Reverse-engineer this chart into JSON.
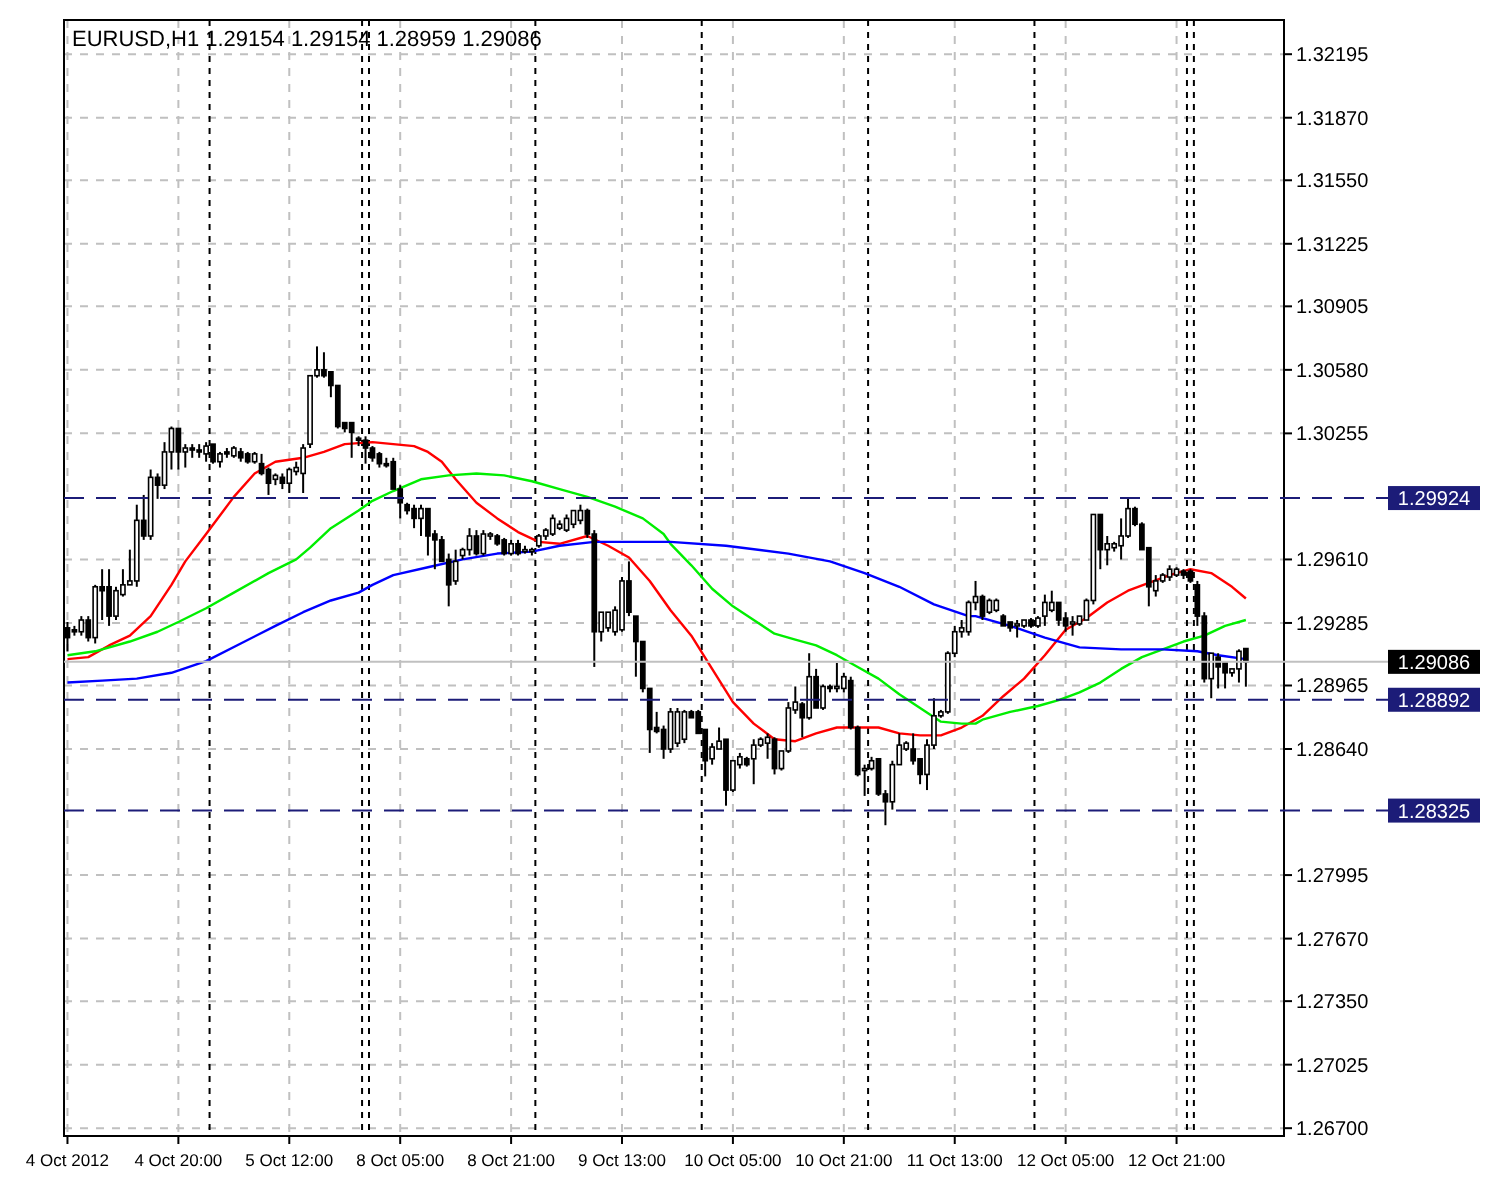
{
  "chart_data": {
    "type": "candlestick",
    "title": "EURUSD,H1  1.29154 1.29154 1.28959 1.29086",
    "categories": [
      "4 Oct 2012",
      null,
      null,
      null,
      null,
      null,
      null,
      null,
      null,
      null,
      null,
      null,
      null,
      null,
      null,
      null,
      "4 Oct 20:00",
      null,
      null,
      null,
      null,
      null,
      null,
      null,
      null,
      null,
      null,
      null,
      null,
      null,
      null,
      null,
      "5 Oct 12:00",
      null,
      null,
      null,
      null,
      null,
      null,
      null,
      null,
      null,
      null,
      null,
      null,
      null,
      null,
      null,
      "8 Oct 05:00",
      null,
      null,
      null,
      null,
      null,
      null,
      null,
      null,
      null,
      null,
      null,
      null,
      null,
      null,
      null,
      "8 Oct 21:00",
      null,
      null,
      null,
      null,
      null,
      null,
      null,
      null,
      null,
      null,
      null,
      null,
      null,
      null,
      null,
      "9 Oct 13:00",
      null,
      null,
      null,
      null,
      null,
      null,
      null,
      null,
      null,
      null,
      null,
      null,
      null,
      null,
      null,
      "10 Oct 05:00",
      null,
      null,
      null,
      null,
      null,
      null,
      null,
      null,
      null,
      null,
      null,
      null,
      null,
      null,
      null,
      "10 Oct 21:00",
      null,
      null,
      null,
      null,
      null,
      null,
      null,
      null,
      null,
      null,
      null,
      null,
      null,
      null,
      null,
      "11 Oct 13:00",
      null,
      null,
      null,
      null,
      null,
      null,
      null,
      null,
      null,
      null,
      null,
      null,
      null,
      null,
      null,
      "12 Oct 05:00",
      null,
      null,
      null,
      null,
      null,
      null,
      null,
      null,
      null,
      null,
      null,
      null,
      null,
      null,
      null,
      "12 Oct 21:00",
      null,
      null,
      null,
      null,
      null,
      null,
      null,
      null,
      null,
      null,
      null,
      null,
      null,
      null,
      null
    ],
    "ohlc": [
      [
        1.2926,
        1.2929,
        1.2914,
        1.2921
      ],
      [
        1.2925,
        1.2927,
        1.2922,
        1.2924
      ],
      [
        1.2924,
        1.2932,
        1.2922,
        1.293
      ],
      [
        1.293,
        1.2932,
        1.2919,
        1.2921
      ],
      [
        1.2921,
        1.2948,
        1.2918,
        1.2947
      ],
      [
        1.2947,
        1.2956,
        1.293,
        1.2945
      ],
      [
        1.2947,
        1.2956,
        1.2927,
        1.2932
      ],
      [
        1.2932,
        1.2947,
        1.293,
        1.2945
      ],
      [
        1.2943,
        1.2956,
        1.2942,
        1.2948
      ],
      [
        1.2948,
        1.2966,
        1.2948,
        1.295
      ],
      [
        1.295,
        1.2989,
        1.2947,
        1.2981
      ],
      [
        1.2981,
        1.2994,
        1.2971,
        1.2973
      ],
      [
        1.2973,
        1.3007,
        1.2971,
        1.3003
      ],
      [
        1.3003,
        1.3005,
        1.2992,
        1.2999
      ],
      [
        1.2999,
        1.3021,
        1.2997,
        1.3016
      ],
      [
        1.3016,
        1.3029,
        1.3007,
        1.3028
      ],
      [
        1.3028,
        1.3028,
        1.3007,
        1.3016
      ],
      [
        1.3016,
        1.302,
        1.3008,
        1.3018
      ],
      [
        1.3018,
        1.302,
        1.3013,
        1.3017
      ],
      [
        1.3017,
        1.302,
        1.3013,
        1.3016
      ],
      [
        1.3015,
        1.3021,
        1.3011,
        1.3019
      ],
      [
        1.302,
        1.302,
        1.301,
        1.3011
      ],
      [
        1.3011,
        1.3016,
        1.3008,
        1.3015
      ],
      [
        1.3016,
        1.3018,
        1.3013,
        1.3015
      ],
      [
        1.3014,
        1.3019,
        1.3013,
        1.3018
      ],
      [
        1.3016,
        1.3018,
        1.3011,
        1.3013
      ],
      [
        1.3015,
        1.3016,
        1.301,
        1.3011
      ],
      [
        1.3011,
        1.3016,
        1.301,
        1.3015
      ],
      [
        1.301,
        1.3015,
        1.3004,
        1.3005
      ],
      [
        1.3007,
        1.3008,
        1.2994,
        1.3
      ],
      [
        1.3002,
        1.3005,
        1.2999,
        1.3004
      ],
      [
        1.3003,
        1.3005,
        1.2997,
        1.3
      ],
      [
        1.3,
        1.3008,
        1.2995,
        1.3007
      ],
      [
        1.3006,
        1.3011,
        1.3004,
        1.3008
      ],
      [
        1.3005,
        1.302,
        1.2995,
        1.3018
      ],
      [
        1.302,
        1.3055,
        1.3018,
        1.3055
      ],
      [
        1.3055,
        1.307,
        1.3054,
        1.3058
      ],
      [
        1.3058,
        1.3067,
        1.3054,
        1.3055
      ],
      [
        1.3057,
        1.3057,
        1.3044,
        1.305
      ],
      [
        1.305,
        1.305,
        1.3028,
        1.3029
      ],
      [
        1.3031,
        1.3031,
        1.3026,
        1.3028
      ],
      [
        1.3031,
        1.3031,
        1.3013,
        1.3026
      ],
      [
        1.3023,
        1.3024,
        1.3019,
        1.3022
      ],
      [
        1.3022,
        1.3024,
        1.301,
        1.3018
      ],
      [
        1.3018,
        1.3019,
        1.3011,
        1.3013
      ],
      [
        1.3015,
        1.3016,
        1.3008,
        1.301
      ],
      [
        1.301,
        1.3013,
        1.3008,
        1.3009
      ],
      [
        1.3011,
        1.3013,
        1.2997,
        1.2997
      ],
      [
        1.2997,
        1.2999,
        1.2982,
        1.299
      ],
      [
        1.2989,
        1.299,
        1.2984,
        1.2986
      ],
      [
        1.2987,
        1.2989,
        1.2977,
        1.2982
      ],
      [
        1.2982,
        1.2989,
        1.2973,
        1.2987
      ],
      [
        1.2987,
        1.2987,
        1.2963,
        1.2973
      ],
      [
        1.2974,
        1.2976,
        1.2956,
        1.2971
      ],
      [
        1.2971,
        1.2973,
        1.296,
        1.296
      ],
      [
        1.2961,
        1.2964,
        1.2937,
        1.2948
      ],
      [
        1.295,
        1.2966,
        1.2948,
        1.296
      ],
      [
        1.2963,
        1.2967,
        1.2961,
        1.2966
      ],
      [
        1.2966,
        1.2977,
        1.2963,
        1.2973
      ],
      [
        1.2973,
        1.2976,
        1.2963,
        1.2964
      ],
      [
        1.2964,
        1.2976,
        1.2963,
        1.2974
      ],
      [
        1.2973,
        1.2975,
        1.2971,
        1.2974
      ],
      [
        1.2973,
        1.2974,
        1.2968,
        1.2969
      ],
      [
        1.2971,
        1.2972,
        1.2963,
        1.2964
      ],
      [
        1.2964,
        1.2971,
        1.2963,
        1.2969
      ],
      [
        1.2969,
        1.2971,
        1.2963,
        1.2964
      ],
      [
        1.2966,
        1.2968,
        1.2964,
        1.2966
      ],
      [
        1.2966,
        1.2967,
        1.2963,
        1.2966
      ],
      [
        1.2968,
        1.2974,
        1.2967,
        1.2973
      ],
      [
        1.2973,
        1.2977,
        1.2971,
        1.2976
      ],
      [
        1.2974,
        1.2984,
        1.2973,
        1.2982
      ],
      [
        1.2977,
        1.2981,
        1.2976,
        1.2979
      ],
      [
        1.2976,
        1.2984,
        1.2975,
        1.2982
      ],
      [
        1.2979,
        1.2986,
        1.2977,
        1.2986
      ],
      [
        1.2981,
        1.2989,
        1.2979,
        1.2986
      ],
      [
        1.2986,
        1.2987,
        1.2972,
        1.2974
      ],
      [
        1.2974,
        1.2976,
        1.2906,
        1.2924
      ],
      [
        1.2924,
        1.2934,
        1.2919,
        1.2934
      ],
      [
        1.2926,
        1.2934,
        1.2924,
        1.2934
      ],
      [
        1.2924,
        1.2937,
        1.2922,
        1.2935
      ],
      [
        1.2925,
        1.2952,
        1.2924,
        1.295
      ],
      [
        1.295,
        1.296,
        1.2932,
        1.2934
      ],
      [
        1.2932,
        1.2932,
        1.2901,
        1.2919
      ],
      [
        1.2919,
        1.2919,
        1.2893,
        1.2895
      ],
      [
        1.2895,
        1.2895,
        1.2862,
        1.2874
      ],
      [
        1.2875,
        1.2883,
        1.2872,
        1.2873
      ],
      [
        1.2874,
        1.2876,
        1.2859,
        1.2864
      ],
      [
        1.2864,
        1.2885,
        1.2862,
        1.2883
      ],
      [
        1.2867,
        1.2885,
        1.2865,
        1.2883
      ],
      [
        1.2869,
        1.2884,
        1.2867,
        1.2883
      ],
      [
        1.2883,
        1.2884,
        1.288,
        1.288
      ],
      [
        1.2883,
        1.2884,
        1.2872,
        1.2872
      ],
      [
        1.2874,
        1.2874,
        1.285,
        1.2858
      ],
      [
        1.2859,
        1.2867,
        1.2856,
        1.2865
      ],
      [
        1.2864,
        1.2875,
        1.2864,
        1.2868
      ],
      [
        1.2869,
        1.2869,
        1.2835,
        1.2843
      ],
      [
        1.2843,
        1.2858,
        1.2842,
        1.2858
      ],
      [
        1.2856,
        1.2862,
        1.2854,
        1.286
      ],
      [
        1.2859,
        1.286,
        1.2855,
        1.2856
      ],
      [
        1.2859,
        1.2869,
        1.2846,
        1.2866
      ],
      [
        1.2866,
        1.287,
        1.2865,
        1.2869
      ],
      [
        1.2867,
        1.2872,
        1.2859,
        1.287
      ],
      [
        1.2869,
        1.287,
        1.2851,
        1.2854
      ],
      [
        1.2854,
        1.2863,
        1.2853,
        1.2863
      ],
      [
        1.2863,
        1.2888,
        1.2862,
        1.2885
      ],
      [
        1.2884,
        1.2896,
        1.2882,
        1.2888
      ],
      [
        1.2887,
        1.2888,
        1.287,
        1.288
      ],
      [
        1.288,
        1.2913,
        1.2879,
        1.2901
      ],
      [
        1.2901,
        1.2905,
        1.2885,
        1.2885
      ],
      [
        1.2885,
        1.2897,
        1.2884,
        1.2896
      ],
      [
        1.2896,
        1.2897,
        1.2893,
        1.2895
      ],
      [
        1.2895,
        1.2908,
        1.2893,
        1.2896
      ],
      [
        1.2895,
        1.2903,
        1.2893,
        1.2901
      ],
      [
        1.2899,
        1.2901,
        1.2874,
        1.2875
      ],
      [
        1.2875,
        1.2876,
        1.285,
        1.2851
      ],
      [
        1.2853,
        1.2856,
        1.284,
        1.2854
      ],
      [
        1.2854,
        1.286,
        1.2853,
        1.2858
      ],
      [
        1.2859,
        1.2859,
        1.284,
        1.2841
      ],
      [
        1.2841,
        1.2843,
        1.2825,
        1.2837
      ],
      [
        1.2837,
        1.2858,
        1.2833,
        1.2856
      ],
      [
        1.2856,
        1.2872,
        1.2856,
        1.2866
      ],
      [
        1.2864,
        1.2868,
        1.2863,
        1.2867
      ],
      [
        1.2864,
        1.2872,
        1.2856,
        1.2858
      ],
      [
        1.2859,
        1.2859,
        1.2846,
        1.2851
      ],
      [
        1.2851,
        1.2869,
        1.2843,
        1.2866
      ],
      [
        1.2866,
        1.289,
        1.2864,
        1.2881
      ],
      [
        1.2881,
        1.2884,
        1.288,
        1.2883
      ],
      [
        1.2883,
        1.2914,
        1.2882,
        1.2913
      ],
      [
        1.2913,
        1.2927,
        1.2911,
        1.2924
      ],
      [
        1.2924,
        1.293,
        1.2921,
        1.2926
      ],
      [
        1.2924,
        1.294,
        1.2922,
        1.2939
      ],
      [
        1.2939,
        1.295,
        1.2935,
        1.2942
      ],
      [
        1.2942,
        1.2943,
        1.293,
        1.2932
      ],
      [
        1.2934,
        1.2941,
        1.2933,
        1.294
      ],
      [
        1.2935,
        1.2941,
        1.2934,
        1.294
      ],
      [
        1.2932,
        1.2933,
        1.2927,
        1.2927
      ],
      [
        1.2929,
        1.2929,
        1.2924,
        1.2926
      ],
      [
        1.2927,
        1.293,
        1.2921,
        1.2928
      ],
      [
        1.2927,
        1.293,
        1.2926,
        1.293
      ],
      [
        1.293,
        1.2931,
        1.2926,
        1.2927
      ],
      [
        1.2927,
        1.2932,
        1.2926,
        1.2931
      ],
      [
        1.2932,
        1.2943,
        1.2927,
        1.2939
      ],
      [
        1.2935,
        1.2945,
        1.2934,
        1.2939
      ],
      [
        1.2939,
        1.2939,
        1.2927,
        1.293
      ],
      [
        1.2931,
        1.2934,
        1.2924,
        1.2927
      ],
      [
        1.2929,
        1.2932,
        1.2922,
        1.2929
      ],
      [
        1.2928,
        1.2932,
        1.2927,
        1.2932
      ],
      [
        1.293,
        1.2941,
        1.293,
        1.294
      ],
      [
        1.294,
        1.2984,
        1.2938,
        1.2984
      ],
      [
        1.2984,
        1.2984,
        1.2956,
        1.2966
      ],
      [
        1.2966,
        1.2973,
        1.2958,
        1.2969
      ],
      [
        1.2967,
        1.297,
        1.2965,
        1.2969
      ],
      [
        1.2968,
        1.2982,
        1.2961,
        1.2973
      ],
      [
        1.2973,
        1.2992,
        1.2972,
        1.2987
      ],
      [
        1.2987,
        1.2988,
        1.2978,
        1.2979
      ],
      [
        1.2979,
        1.298,
        1.2966,
        1.2966
      ],
      [
        1.2967,
        1.2967,
        1.2937,
        1.2947
      ],
      [
        1.2945,
        1.2953,
        1.2942,
        1.295
      ],
      [
        1.295,
        1.2954,
        1.2949,
        1.2953
      ],
      [
        1.2952,
        1.2958,
        1.295,
        1.2956
      ],
      [
        1.2953,
        1.2957,
        1.2952,
        1.2956
      ],
      [
        1.2955,
        1.2956,
        1.2951,
        1.2953
      ],
      [
        1.2955,
        1.2956,
        1.2949,
        1.295
      ],
      [
        1.2948,
        1.295,
        1.2927,
        1.2932
      ],
      [
        1.2932,
        1.2934,
        1.2898,
        1.29
      ],
      [
        1.29,
        1.2913,
        1.289,
        1.2913
      ],
      [
        1.2911,
        1.2913,
        1.2895,
        1.2906
      ],
      [
        1.2908,
        1.2908,
        1.2895,
        1.2903
      ],
      [
        1.2903,
        1.2905,
        1.2901,
        1.2905
      ],
      [
        1.2905,
        1.2915,
        1.2898,
        1.2914
      ],
      [
        1.29154,
        1.29154,
        1.28959,
        1.29086
      ],
      null,
      null,
      null,
      null,
      null
    ],
    "series": [
      {
        "type": "line",
        "color": "#ff0000",
        "values": [
          1.291,
          null,
          null,
          1.2911,
          null,
          null,
          1.2917,
          null,
          null,
          1.2922,
          null,
          null,
          1.2932,
          null,
          null,
          1.2948,
          null,
          1.296,
          null,
          null,
          1.2974,
          null,
          null,
          null,
          1.2993,
          null,
          null,
          1.3005,
          null,
          null,
          1.3011,
          null,
          null,
          null,
          1.3013,
          null,
          null,
          1.3016,
          null,
          null,
          1.302,
          null,
          null,
          null,
          1.3021,
          null,
          null,
          1.302,
          null,
          null,
          1.3019,
          null,
          1.3016,
          null,
          1.3011,
          null,
          1.3002,
          null,
          null,
          1.299,
          null,
          null,
          1.2982,
          null,
          null,
          1.2975,
          null,
          null,
          1.297,
          null,
          null,
          1.2969,
          null,
          null,
          null,
          1.2973,
          null,
          null,
          1.2968,
          null,
          null,
          1.2962,
          null,
          null,
          1.295,
          null,
          null,
          1.2935,
          null,
          null,
          1.2922,
          null,
          null,
          1.2905,
          null,
          null,
          1.2888,
          null,
          null,
          1.2877,
          null,
          null,
          1.2869,
          null,
          null,
          1.2868,
          null,
          null,
          1.2872,
          null,
          null,
          1.2875,
          null,
          null,
          1.2875,
          null,
          null,
          1.2875,
          null,
          null,
          1.2872,
          null,
          null,
          1.2871,
          null,
          null,
          1.2871,
          null,
          null,
          1.2875,
          null,
          1.2879,
          1.2881,
          null,
          null,
          1.2891,
          null,
          null,
          1.29,
          null,
          null,
          1.2912,
          null,
          null,
          1.2925,
          null,
          null,
          1.2931,
          null,
          null,
          1.2939,
          null,
          null,
          1.2945,
          null,
          null,
          1.2949,
          null,
          null,
          1.2953,
          null,
          null,
          1.2956,
          null,
          null,
          1.2954,
          null,
          null,
          1.2947,
          null,
          1.2941,
          null,
          null,
          null,
          null,
          null
        ]
      },
      {
        "type": "line",
        "color": "#00ee00",
        "values": [
          1.2912,
          null,
          null,
          null,
          1.2914,
          null,
          null,
          null,
          null,
          1.2919,
          null,
          null,
          null,
          1.2924,
          null,
          null,
          1.2929,
          null,
          null,
          null,
          1.2936,
          null,
          null,
          null,
          1.2944,
          null,
          null,
          null,
          null,
          1.2954,
          null,
          null,
          null,
          1.2961,
          null,
          1.2967,
          null,
          null,
          1.2977,
          null,
          null,
          null,
          1.2986,
          null,
          1.2991,
          null,
          null,
          1.2996,
          null,
          null,
          null,
          1.3002,
          null,
          null,
          null,
          1.3004,
          null,
          null,
          null,
          1.3005,
          null,
          null,
          null,
          1.3004,
          null,
          null,
          null,
          1.3001,
          null,
          null,
          null,
          1.2997,
          null,
          null,
          null,
          1.2993,
          null,
          null,
          null,
          1.2988,
          null,
          null,
          null,
          1.2982,
          null,
          null,
          1.2974,
          1.2969,
          null,
          null,
          1.2958,
          null,
          null,
          1.2946,
          null,
          null,
          1.2937,
          null,
          null,
          1.293,
          null,
          null,
          1.2923,
          null,
          null,
          1.292,
          null,
          null,
          1.2917,
          null,
          null,
          1.2912,
          null,
          null,
          1.2906,
          null,
          null,
          1.29,
          null,
          null,
          1.2892,
          null,
          null,
          1.2885,
          null,
          null,
          1.2878,
          null,
          null,
          1.2877,
          null,
          1.2877,
          1.2879,
          null,
          null,
          null,
          1.2883,
          null,
          null,
          null,
          1.2886,
          null,
          null,
          1.2889,
          null,
          null,
          1.2893,
          null,
          null,
          1.2898,
          null,
          null,
          1.2905,
          null,
          null,
          1.2911,
          null,
          null,
          1.2915,
          null,
          null,
          1.2919,
          null,
          null,
          1.2922,
          null,
          null,
          1.2927,
          null,
          null,
          1.293,
          null,
          null,
          null,
          null,
          null
        ]
      },
      {
        "type": "line",
        "color": "#0000ff",
        "values": [
          1.2898,
          null,
          null,
          null,
          null,
          1.2899,
          null,
          null,
          null,
          null,
          1.29,
          null,
          null,
          null,
          null,
          1.2903,
          null,
          null,
          null,
          null,
          1.2909,
          null,
          null,
          null,
          null,
          1.2918,
          null,
          null,
          null,
          null,
          1.2927,
          null,
          null,
          null,
          1.2934,
          null,
          null,
          null,
          1.294,
          null,
          null,
          null,
          1.2944,
          null,
          1.2948,
          null,
          null,
          1.2953,
          null,
          null,
          null,
          null,
          1.2957,
          null,
          null,
          null,
          null,
          1.2961,
          null,
          null,
          null,
          null,
          1.2964,
          null,
          null,
          null,
          null,
          1.2965,
          null,
          null,
          null,
          1.2968,
          null,
          null,
          null,
          null,
          1.297,
          null,
          null,
          null,
          null,
          1.297,
          null,
          null,
          null,
          null,
          1.297,
          1.297,
          null,
          null,
          null,
          null,
          null,
          null,
          null,
          1.2968,
          null,
          null,
          null,
          null,
          null,
          null,
          null,
          null,
          1.2964,
          null,
          null,
          null,
          null,
          null,
          1.296,
          null,
          null,
          null,
          null,
          1.2954,
          null,
          null,
          null,
          null,
          1.2947,
          null,
          null,
          null,
          null,
          1.2938,
          null,
          null,
          null,
          null,
          1.2932,
          1.2932,
          null,
          null,
          null,
          null,
          1.2927,
          null,
          null,
          null,
          null,
          1.2921,
          null,
          null,
          null,
          null,
          1.2916,
          null,
          null,
          null,
          null,
          null,
          1.2915,
          null,
          null,
          null,
          null,
          null,
          1.2915,
          null,
          null,
          null,
          null,
          1.2914,
          null,
          null,
          1.2912,
          null,
          null,
          null,
          1.291,
          null,
          null,
          null,
          null,
          null
        ]
      }
    ],
    "ylim": [
      1.2666,
      1.3237
    ],
    "yticks": [
      1.32195,
      {
        "value": 1.3187,
        "label": "1.31870"
      },
      {
        "value": 1.3155,
        "label": "1.31550"
      },
      1.31225,
      1.30905,
      {
        "value": 1.3058,
        "label": "1.30580"
      },
      1.30255,
      {
        "value": 1.2961,
        "label": "1.29610"
      },
      1.29285,
      1.28965,
      {
        "value": 1.2864,
        "label": "1.28640"
      },
      1.27995,
      {
        "value": 1.2767,
        "label": "1.27670"
      },
      {
        "value": 1.2735,
        "label": "1.27350"
      },
      1.27025,
      {
        "value": 1.267,
        "label": "1.26700"
      }
    ],
    "grid": true,
    "ref_lines": [
      {
        "axis": "y",
        "value": 1.29924,
        "label": "1.29924",
        "color": "#1c1c78",
        "line_style": "dashed"
      },
      {
        "axis": "y",
        "value": 1.28892,
        "label": "1.28892",
        "color": "#1c1c78",
        "line_style": "dashed"
      },
      {
        "axis": "y",
        "value": 1.28325,
        "label": "1.28325",
        "color": "#1c1c78",
        "line_style": "dashed"
      },
      {
        "axis": "y",
        "value": 1.29086,
        "label": "1.29086",
        "color": "#c0c0c0",
        "line_style": "solid"
      }
    ]
  }
}
